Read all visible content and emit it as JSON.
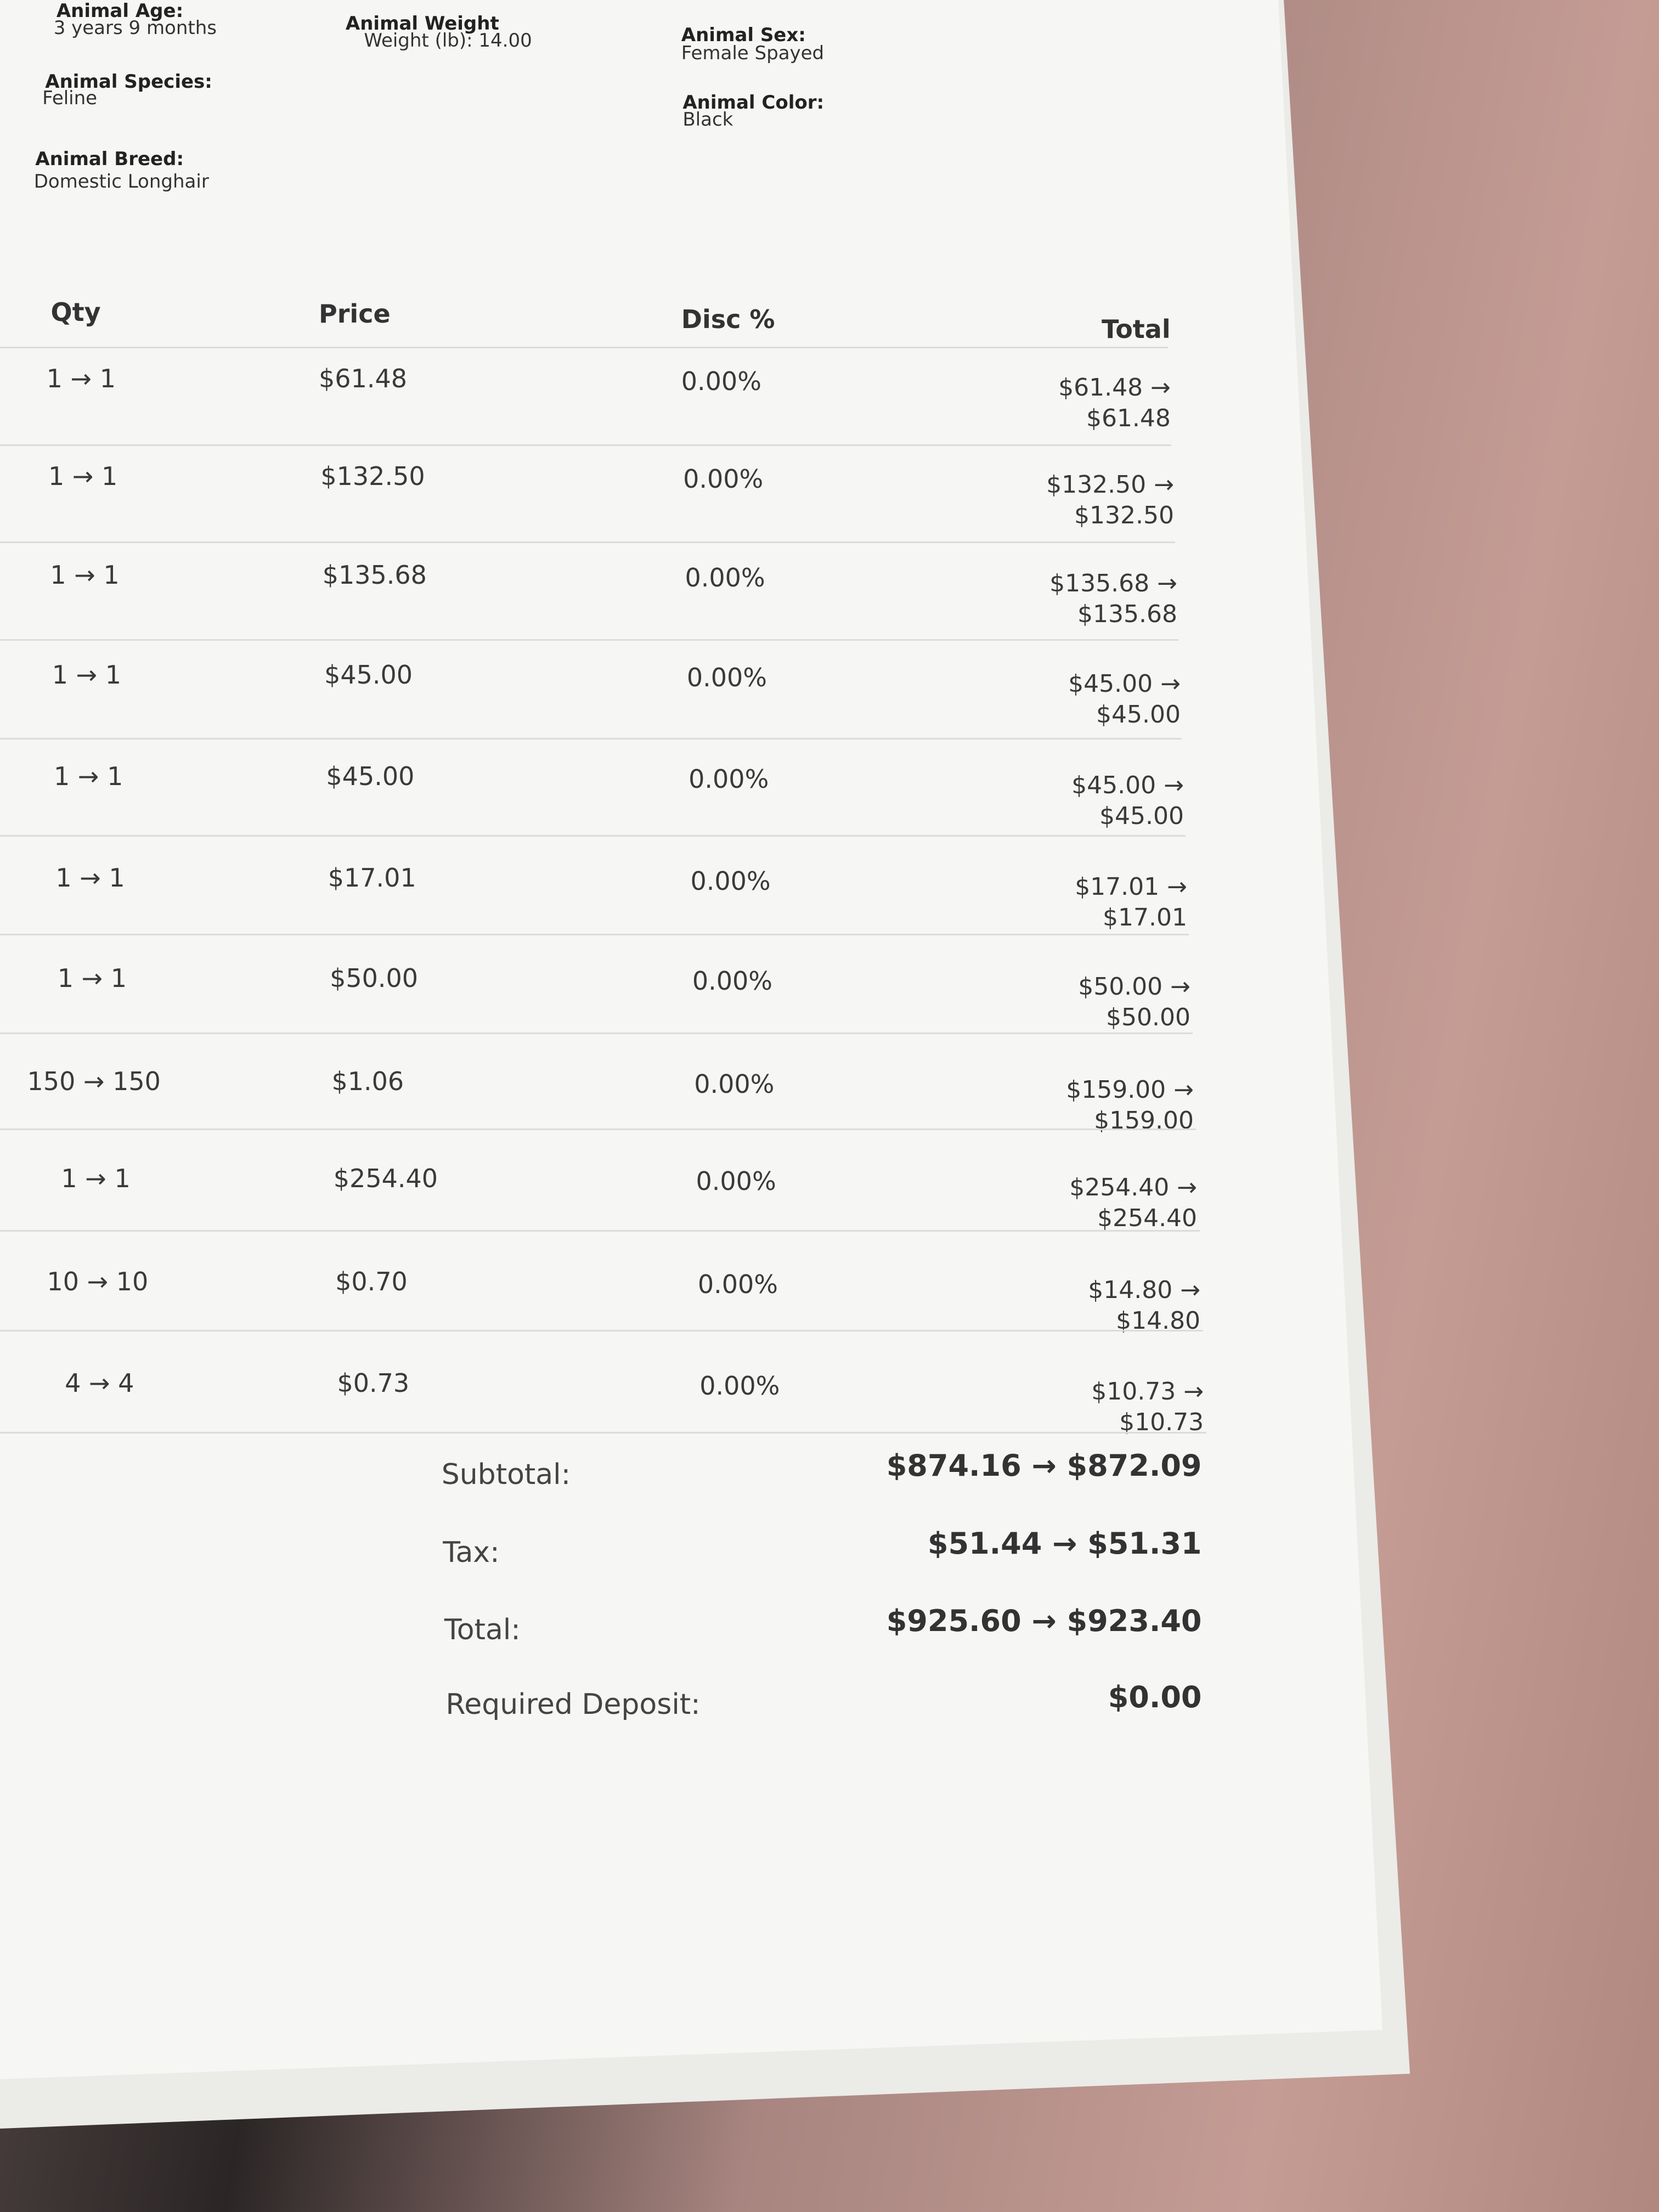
{
  "animal": {
    "age": {
      "label": "Animal Age:",
      "value": "3 years 9 months"
    },
    "weight": {
      "label": "Animal Weight",
      "value": "Weight (lb): 14.00"
    },
    "sex": {
      "label": "Animal Sex:",
      "value": "Female Spayed"
    },
    "species": {
      "label": "Animal Species:",
      "value": "Feline"
    },
    "color": {
      "label": "Animal Color:",
      "value": "Black"
    },
    "breed": {
      "label": "Animal Breed:",
      "value": "Domestic Longhair"
    }
  },
  "table": {
    "headers": [
      "Qty",
      "Price",
      "Disc %",
      "Total"
    ],
    "rows": [
      [
        "1 → 1",
        "$61.48",
        "0.00%",
        "$61.48 → $61.48"
      ],
      [
        "1 → 1",
        "$132.50",
        "0.00%",
        "$132.50 → $132.50"
      ],
      [
        "1 → 1",
        "$135.68",
        "0.00%",
        "$135.68 → $135.68"
      ],
      [
        "1 → 1",
        "$45.00",
        "0.00%",
        "$45.00 → $45.00"
      ],
      [
        "1 → 1",
        "$45.00",
        "0.00%",
        "$45.00 → $45.00"
      ],
      [
        "1 → 1",
        "$17.01",
        "0.00%",
        "$17.01 → $17.01"
      ],
      [
        "1 → 1",
        "$50.00",
        "0.00%",
        "$50.00 → $50.00"
      ],
      [
        "150 → 150",
        "$1.06",
        "0.00%",
        "$159.00 → $159.00"
      ],
      [
        "1 → 1",
        "$254.40",
        "0.00%",
        "$254.40 → $254.40"
      ],
      [
        "10 → 10",
        "$0.70",
        "0.00%",
        "$14.80 → $14.80"
      ],
      [
        "4 → 4",
        "$0.73",
        "0.00%",
        "$10.73 → $10.73"
      ]
    ]
  },
  "summary": [
    {
      "label": "Subtotal:",
      "value": "$874.16 → $872.09"
    },
    {
      "label": "Tax:",
      "value": "$51.44 → $51.31"
    },
    {
      "label": "Total:",
      "value": "$925.60 → $923.40"
    },
    {
      "label": "Required Deposit:",
      "value": "$0.00"
    }
  ]
}
